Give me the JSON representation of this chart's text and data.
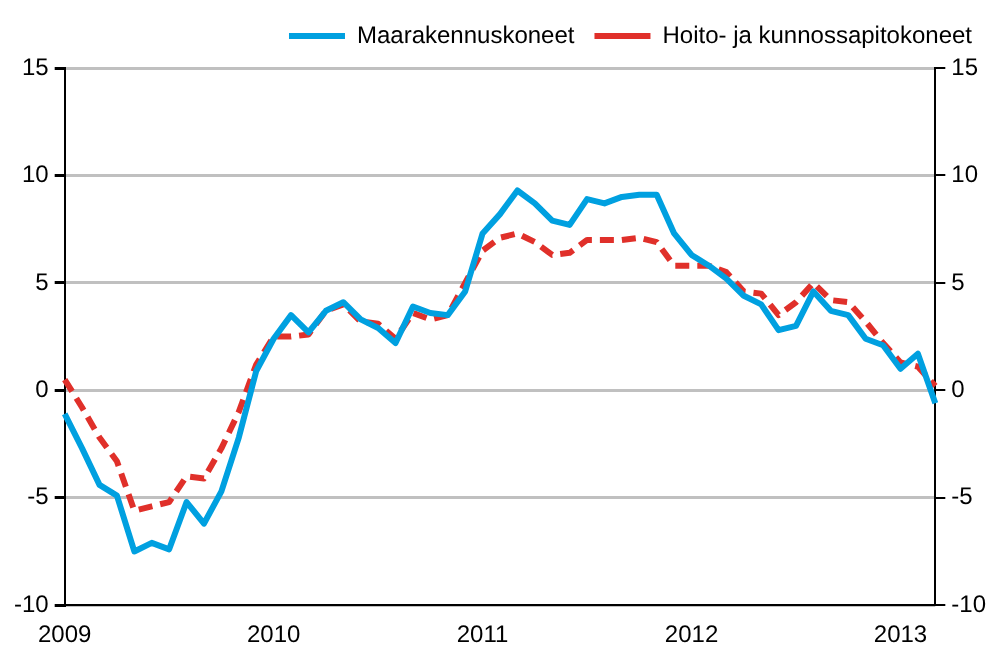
{
  "chart_data": {
    "type": "line",
    "categories": [
      "2009",
      null,
      null,
      null,
      null,
      null,
      null,
      null,
      null,
      null,
      null,
      null,
      "2010",
      null,
      null,
      null,
      null,
      null,
      null,
      null,
      null,
      null,
      null,
      null,
      "2011",
      null,
      null,
      null,
      null,
      null,
      null,
      null,
      null,
      null,
      null,
      null,
      "2012",
      null,
      null,
      null,
      null,
      null,
      null,
      null,
      null,
      null,
      null,
      null,
      "2013",
      null,
      null
    ],
    "series": [
      {
        "name": "Maarakennuskoneet",
        "color": "#00a0e0",
        "line_style": "solid",
        "values": [
          -1.1,
          -2.7,
          -4.4,
          -4.9,
          -7.5,
          -7.1,
          -7.4,
          -5.2,
          -6.2,
          -4.7,
          -2.2,
          0.9,
          2.4,
          3.5,
          2.7,
          3.7,
          4.1,
          3.3,
          2.9,
          2.2,
          3.9,
          3.6,
          3.5,
          4.6,
          7.3,
          8.2,
          9.3,
          8.7,
          7.9,
          7.7,
          8.9,
          8.7,
          9.0,
          9.1,
          9.1,
          7.3,
          6.3,
          5.8,
          5.2,
          4.4,
          4.0,
          2.8,
          3.0,
          4.6,
          3.7,
          3.5,
          2.4,
          2.1,
          1.0,
          1.7,
          -0.6
        ]
      },
      {
        "name": "Hoito- ja kunnossapitokoneet",
        "color": "#e0302a",
        "line_style": "dashed",
        "values": [
          0.5,
          -0.8,
          -2.2,
          -3.3,
          -5.6,
          -5.4,
          -5.2,
          -4.0,
          -4.1,
          -2.7,
          -1.0,
          1.2,
          2.5,
          2.5,
          2.6,
          3.7,
          4.0,
          3.2,
          3.1,
          2.4,
          3.6,
          3.3,
          3.5,
          5.0,
          6.5,
          7.1,
          7.3,
          6.9,
          6.3,
          6.4,
          7.0,
          7.0,
          7.0,
          7.1,
          6.9,
          5.8,
          5.8,
          5.8,
          5.5,
          4.6,
          4.5,
          3.5,
          4.1,
          5.0,
          4.2,
          4.1,
          3.2,
          2.2,
          1.3,
          1.1,
          0.2
        ]
      }
    ],
    "ylim": [
      -10,
      15
    ],
    "yticks": [
      -10,
      -5,
      0,
      5,
      10,
      15
    ],
    "y2lim": [
      -10,
      15
    ],
    "y2ticks": [
      -10,
      -5,
      0,
      5,
      10,
      15
    ],
    "grid": "y",
    "legend": "top right",
    "marker": "none"
  }
}
